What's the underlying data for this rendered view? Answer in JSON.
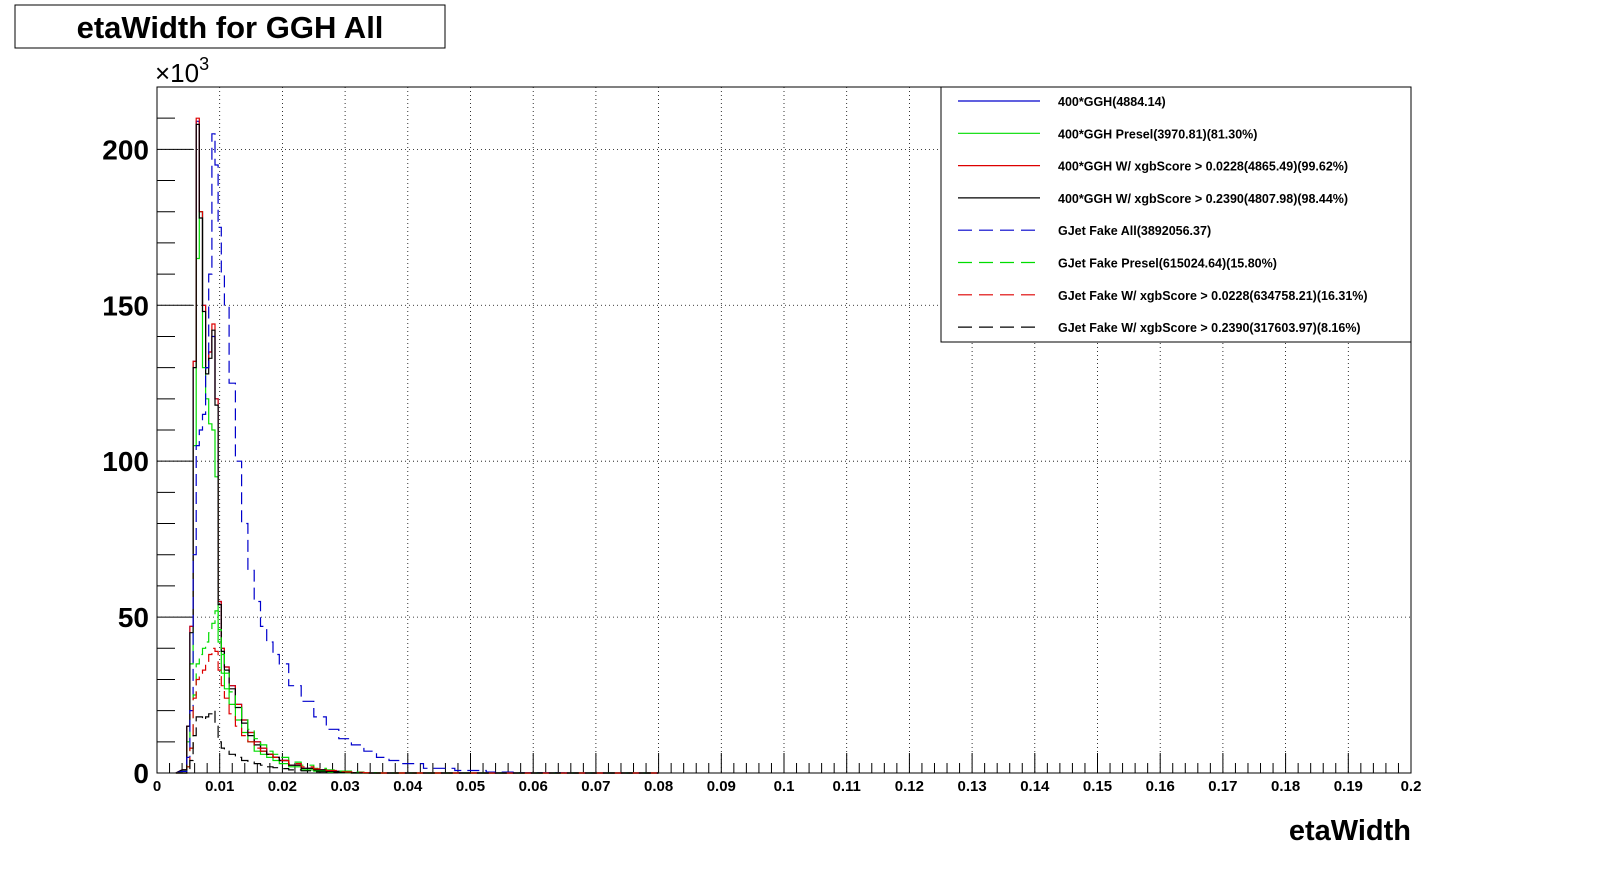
{
  "chart_data": {
    "type": "line",
    "title": "etaWidth for GGH All",
    "xlabel": "etaWidth",
    "ylabel": "",
    "y_multiplier": "×10",
    "y_multiplier_exponent": "3",
    "xlim": [
      0,
      0.2
    ],
    "ylim": [
      0,
      220
    ],
    "grid": true,
    "legend_position": "top-right",
    "x_ticks": [
      "0",
      "0.01",
      "0.02",
      "0.03",
      "0.04",
      "0.05",
      "0.06",
      "0.07",
      "0.08",
      "0.09",
      "0.1",
      "0.11",
      "0.12",
      "0.13",
      "0.14",
      "0.15",
      "0.16",
      "0.17",
      "0.18",
      "0.19",
      "0.2"
    ],
    "y_ticks": [
      "0",
      "50",
      "100",
      "150",
      "200"
    ],
    "x": [
      0.0045,
      0.005,
      0.0055,
      0.006,
      0.0065,
      0.007,
      0.0075,
      0.008,
      0.0085,
      0.009,
      0.0095,
      0.01,
      0.0105,
      0.011,
      0.012,
      0.013,
      0.014,
      0.015,
      0.016,
      0.017,
      0.018,
      0.019,
      0.02,
      0.022,
      0.024,
      0.026,
      0.028,
      0.03,
      0.032,
      0.034,
      0.036,
      0.038,
      0.04,
      0.045,
      0.05,
      0.055,
      0.06,
      0.07
    ],
    "series": [
      {
        "name": "400*GGH(4884.14)",
        "color": "#0000cc",
        "dash": "solid",
        "values": [
          1,
          15,
          47,
          132,
          209,
          180,
          150,
          130,
          135,
          140,
          120,
          55,
          40,
          34,
          28,
          22,
          17,
          13,
          10,
          8,
          6,
          5,
          4,
          2.5,
          1.5,
          1,
          0.5,
          0.3,
          0.1,
          0,
          0,
          0,
          0,
          0,
          0,
          0,
          0,
          0
        ]
      },
      {
        "name": "400*GGH Presel(3970.81)(81.30%)",
        "color": "#00dd00",
        "dash": "solid",
        "values": [
          0.5,
          10,
          35,
          105,
          165,
          180,
          130,
          120,
          112,
          110,
          95,
          42,
          32,
          27,
          22,
          17,
          13,
          10,
          7,
          6,
          5,
          4,
          3,
          2,
          1,
          0.6,
          0.3,
          0.1,
          0,
          0,
          0,
          0,
          0,
          0,
          0,
          0,
          0,
          0
        ]
      },
      {
        "name": "400*GGH W/ xgbScore > 0.0228(4865.49)(99.62%)",
        "color": "#dd0000",
        "dash": "solid",
        "values": [
          1,
          15,
          47,
          132,
          210,
          180,
          150,
          130,
          135,
          144,
          120,
          55,
          40,
          34,
          28,
          22,
          17,
          13,
          10,
          8,
          6,
          5,
          4,
          2.5,
          1.5,
          1,
          0.5,
          0.3,
          0.1,
          0,
          0,
          0,
          0,
          0,
          0,
          0,
          0,
          0
        ]
      },
      {
        "name": "400*GGH W/ xgbScore > 0.2390(4807.98)(98.44%)",
        "color": "#000000",
        "dash": "solid",
        "values": [
          1,
          15,
          45,
          130,
          208,
          178,
          148,
          128,
          133,
          142,
          118,
          54,
          39,
          33,
          27,
          21,
          16,
          12,
          9,
          7,
          6,
          5,
          4,
          2.5,
          1.5,
          1,
          0.5,
          0.3,
          0.1,
          0,
          0,
          0,
          0,
          0,
          0,
          0,
          0,
          0
        ]
      },
      {
        "name": "GJet Fake All(3892056.37)",
        "color": "#0000cc",
        "dash": "dashed",
        "values": [
          0.5,
          5,
          20,
          70,
          105,
          110,
          115,
          130,
          160,
          205,
          195,
          175,
          160,
          150,
          125,
          100,
          80,
          65,
          55,
          47,
          42,
          38,
          35,
          28,
          23,
          18,
          14,
          11,
          9,
          7,
          5,
          4,
          3,
          1.5,
          0.8,
          0.3,
          0.1,
          0
        ]
      },
      {
        "name": "GJet Fake Presel(615024.64)(15.80%)",
        "color": "#00dd00",
        "dash": "dashed",
        "values": [
          0,
          2,
          8,
          25,
          35,
          38,
          40,
          42,
          45,
          48,
          52,
          46,
          38,
          32,
          26,
          21,
          17,
          14,
          11,
          9,
          7,
          6,
          5,
          3.5,
          2.5,
          1.5,
          1,
          0.6,
          0.3,
          0.1,
          0,
          0,
          0,
          0,
          0,
          0,
          0,
          0
        ]
      },
      {
        "name": "GJet Fake W/ xgbScore > 0.0228(634758.21)(16.31%)",
        "color": "#dd0000",
        "dash": "dashed",
        "values": [
          0,
          2,
          8,
          24,
          30,
          32,
          33,
          35,
          38,
          40,
          39,
          33,
          28,
          24,
          19,
          15,
          12,
          10,
          8,
          7,
          6,
          5,
          4,
          3,
          2,
          1.3,
          0.8,
          0.4,
          0.2,
          0.1,
          0,
          0,
          0,
          0,
          0,
          0,
          0,
          0
        ]
      },
      {
        "name": "GJet Fake W/ xgbScore > 0.2390(317603.97)(8.16%)",
        "color": "#000000",
        "dash": "dashed",
        "values": [
          0,
          1,
          4,
          12,
          18,
          18,
          17,
          18,
          19,
          20,
          15,
          10,
          8,
          7,
          6,
          5,
          4,
          3.5,
          3,
          2.5,
          2,
          1.7,
          1.4,
          1,
          0.7,
          0.4,
          0.2,
          0.1,
          0,
          0,
          0,
          0,
          0,
          0,
          0,
          0,
          0,
          0
        ]
      }
    ]
  }
}
